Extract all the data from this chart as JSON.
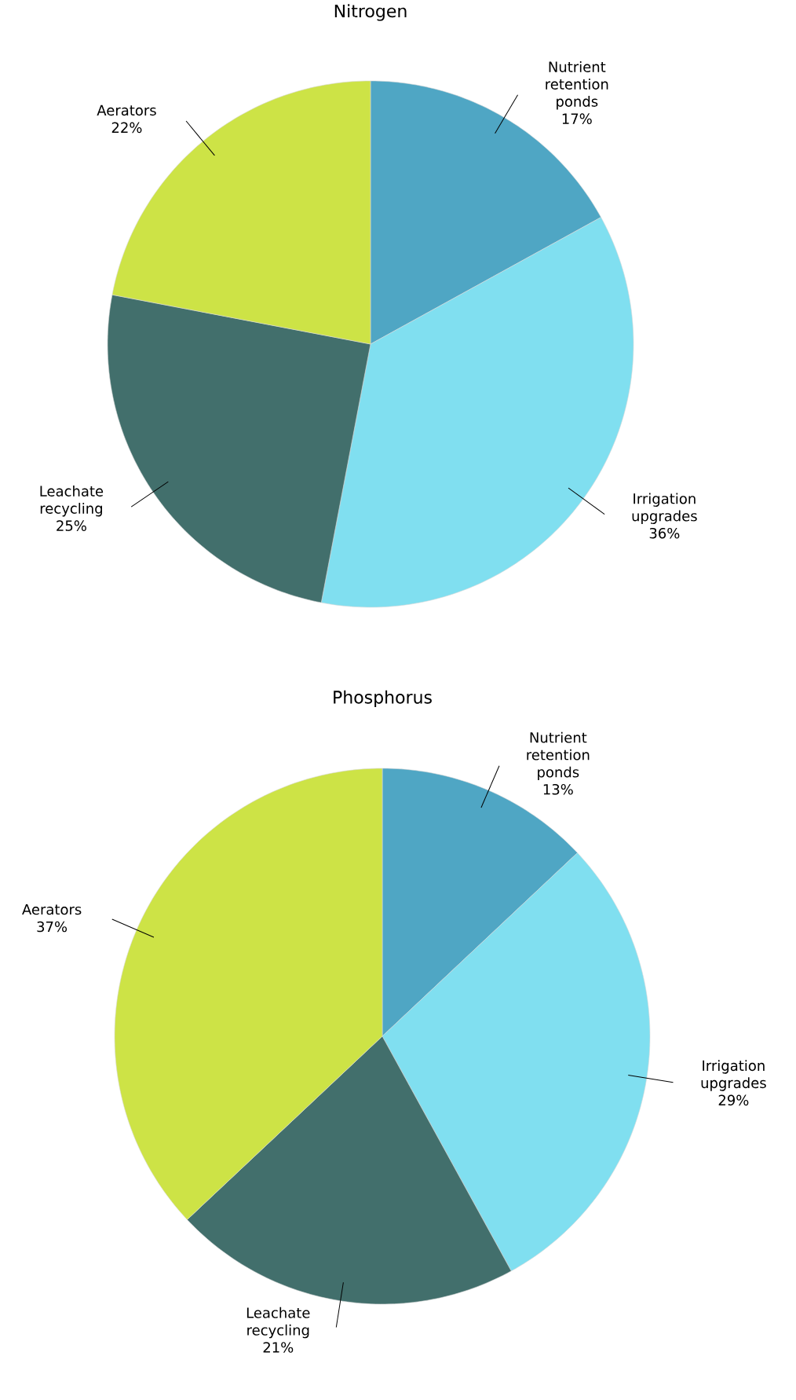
{
  "chart_data": [
    {
      "type": "pie",
      "title": "Nitrogen",
      "categories": [
        "Nutrient retention ponds",
        "Irrigation upgrades",
        "Leachate recycling",
        "Aerators"
      ],
      "values": [
        17,
        36,
        25,
        22
      ],
      "value_labels": [
        "17%",
        "36%",
        "25%",
        "22%"
      ],
      "colors": [
        "#4fa6c4",
        "#80dff0",
        "#426f6c",
        "#cde346"
      ]
    },
    {
      "type": "pie",
      "title": "Phosphorus",
      "categories": [
        "Nutrient retention ponds",
        "Irrigation upgrades",
        "Leachate recycling",
        "Aerators"
      ],
      "values": [
        13,
        29,
        21,
        37
      ],
      "value_labels": [
        "13%",
        "29%",
        "21%",
        "37%"
      ],
      "colors": [
        "#4fa6c4",
        "#80dff0",
        "#426f6c",
        "#cde346"
      ]
    }
  ]
}
